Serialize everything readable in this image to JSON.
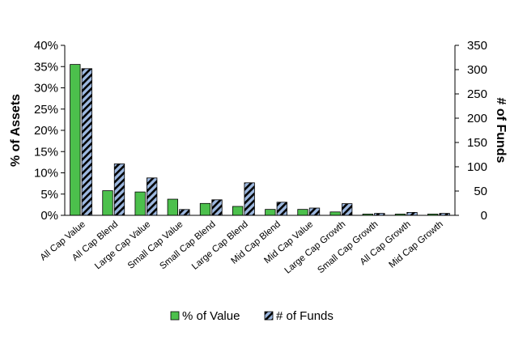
{
  "chart_data": {
    "type": "bar",
    "categories": [
      "All Cap Value",
      "All Cap Blend",
      "Large Cap Value",
      "Small Cap Value",
      "Small Cap Blend",
      "Large Cap Blend",
      "Mid Cap Blend",
      "Mid Cap Value",
      "Large Cap Growth",
      "Small Cap Growth",
      "All Cap Growth",
      "Mid Cap Growth"
    ],
    "series": [
      {
        "name": "% of Value",
        "axis": "left",
        "color": "#4cc04c",
        "pattern": "solid",
        "values": [
          35.5,
          5.8,
          5.5,
          3.8,
          2.8,
          2.1,
          1.4,
          1.4,
          0.8,
          0.3,
          0.3,
          0.3
        ]
      },
      {
        "name": "# of Funds",
        "axis": "right",
        "color": "#9db8e0",
        "pattern": "black-diagonal-stripes",
        "values": [
          302,
          106,
          77,
          12,
          32,
          67,
          27,
          15,
          24,
          4,
          6,
          4
        ]
      }
    ],
    "ylabel_left": "% of Assets",
    "ylabel_right": "# of Funds",
    "ylim_left": [
      0,
      40
    ],
    "ylim_right": [
      0,
      350
    ],
    "yticks_left": [
      "0%",
      "5%",
      "10%",
      "15%",
      "20%",
      "25%",
      "30%",
      "35%",
      "40%"
    ],
    "yticks_right": [
      "0",
      "50",
      "100",
      "150",
      "200",
      "250",
      "300",
      "350"
    ],
    "grid": false,
    "legend_position": "bottom"
  }
}
